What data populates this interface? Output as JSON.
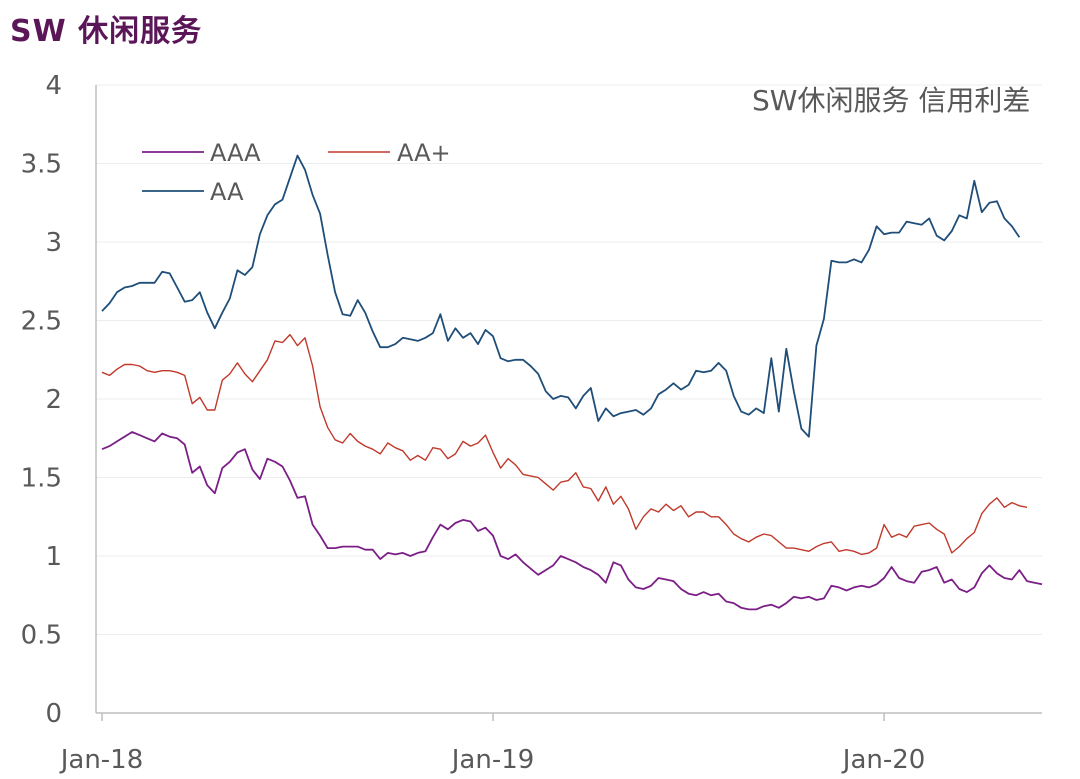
{
  "header": {
    "title": "SW 休闲服务"
  },
  "chart_data": {
    "type": "line",
    "title": "SW休闲服务 信用利差",
    "xlabel": "",
    "ylabel": "",
    "ylim": [
      0,
      4
    ],
    "yticks": [
      "0",
      "0.5",
      "1",
      "1.5",
      "2",
      "2.5",
      "3",
      "3.5",
      "4"
    ],
    "xticks": [
      "Jan-18",
      "Jan-19",
      "Jan-20"
    ],
    "grid": true,
    "legend_position": "top-left",
    "series": [
      {
        "name": "AAA",
        "color": "#7b1f87",
        "values": [
          1.68,
          1.7,
          1.73,
          1.76,
          1.79,
          1.77,
          1.75,
          1.73,
          1.78,
          1.76,
          1.75,
          1.71,
          1.53,
          1.57,
          1.45,
          1.4,
          1.56,
          1.6,
          1.66,
          1.68,
          1.55,
          1.49,
          1.62,
          1.6,
          1.57,
          1.48,
          1.37,
          1.38,
          1.2,
          1.13,
          1.05,
          1.05,
          1.06,
          1.06,
          1.06,
          1.04,
          1.04,
          0.98,
          1.02,
          1.01,
          1.02,
          1.0,
          1.02,
          1.03,
          1.12,
          1.2,
          1.17,
          1.21,
          1.23,
          1.22,
          1.16,
          1.18,
          1.13,
          1.0,
          0.98,
          1.01,
          0.96,
          0.92,
          0.88,
          0.91,
          0.94,
          1.0,
          0.98,
          0.96,
          0.93,
          0.91,
          0.88,
          0.83,
          0.96,
          0.94,
          0.85,
          0.8,
          0.79,
          0.81,
          0.86,
          0.85,
          0.84,
          0.79,
          0.76,
          0.75,
          0.77,
          0.75,
          0.76,
          0.71,
          0.7,
          0.67,
          0.66,
          0.66,
          0.68,
          0.69,
          0.67,
          0.7,
          0.74,
          0.73,
          0.74,
          0.72,
          0.73,
          0.81,
          0.8,
          0.78,
          0.8,
          0.81,
          0.8,
          0.82,
          0.86,
          0.93,
          0.86,
          0.84,
          0.83,
          0.9,
          0.91,
          0.93,
          0.83,
          0.85,
          0.79,
          0.77,
          0.8,
          0.89,
          0.94,
          0.89,
          0.86,
          0.85,
          0.91,
          0.84,
          0.83,
          0.82
        ]
      },
      {
        "name": "AA+",
        "color": "#c0392b",
        "values": [
          2.17,
          2.15,
          2.19,
          2.22,
          2.22,
          2.21,
          2.18,
          2.17,
          2.18,
          2.18,
          2.17,
          2.15,
          1.97,
          2.01,
          1.93,
          1.93,
          2.12,
          2.16,
          2.23,
          2.16,
          2.11,
          2.18,
          2.25,
          2.37,
          2.36,
          2.41,
          2.34,
          2.39,
          2.21,
          1.95,
          1.82,
          1.74,
          1.72,
          1.78,
          1.73,
          1.7,
          1.68,
          1.65,
          1.72,
          1.69,
          1.67,
          1.61,
          1.64,
          1.61,
          1.69,
          1.68,
          1.62,
          1.65,
          1.73,
          1.7,
          1.72,
          1.77,
          1.66,
          1.56,
          1.62,
          1.58,
          1.52,
          1.51,
          1.5,
          1.46,
          1.42,
          1.47,
          1.48,
          1.53,
          1.44,
          1.43,
          1.35,
          1.44,
          1.33,
          1.38,
          1.3,
          1.17,
          1.25,
          1.3,
          1.28,
          1.33,
          1.29,
          1.32,
          1.25,
          1.28,
          1.28,
          1.25,
          1.25,
          1.2,
          1.14,
          1.11,
          1.09,
          1.12,
          1.14,
          1.13,
          1.09,
          1.05,
          1.05,
          1.04,
          1.03,
          1.06,
          1.08,
          1.09,
          1.03,
          1.04,
          1.03,
          1.01,
          1.02,
          1.05,
          1.2,
          1.12,
          1.14,
          1.12,
          1.19,
          1.2,
          1.21,
          1.17,
          1.14,
          1.02,
          1.06,
          1.11,
          1.15,
          1.27,
          1.33,
          1.37,
          1.31,
          1.34,
          1.32,
          1.31
        ]
      },
      {
        "name": "AA",
        "color": "#1f4e79",
        "values": [
          2.56,
          2.61,
          2.68,
          2.71,
          2.72,
          2.74,
          2.74,
          2.74,
          2.81,
          2.8,
          2.71,
          2.62,
          2.63,
          2.68,
          2.55,
          2.45,
          2.55,
          2.64,
          2.82,
          2.79,
          2.84,
          3.05,
          3.17,
          3.24,
          3.27,
          3.41,
          3.55,
          3.46,
          3.3,
          3.18,
          2.92,
          2.68,
          2.54,
          2.53,
          2.63,
          2.55,
          2.43,
          2.33,
          2.33,
          2.35,
          2.39,
          2.38,
          2.37,
          2.39,
          2.42,
          2.54,
          2.37,
          2.45,
          2.39,
          2.42,
          2.35,
          2.44,
          2.4,
          2.26,
          2.24,
          2.25,
          2.25,
          2.21,
          2.16,
          2.05,
          2.0,
          2.02,
          2.01,
          1.94,
          2.02,
          2.07,
          1.86,
          1.94,
          1.89,
          1.91,
          1.92,
          1.93,
          1.9,
          1.94,
          2.03,
          2.06,
          2.1,
          2.06,
          2.09,
          2.18,
          2.17,
          2.18,
          2.23,
          2.18,
          2.02,
          1.92,
          1.9,
          1.94,
          1.91,
          2.26,
          1.92,
          2.32,
          2.05,
          1.81,
          1.76,
          2.34,
          2.51,
          2.88,
          2.87,
          2.87,
          2.89,
          2.87,
          2.95,
          3.1,
          3.05,
          3.06,
          3.06,
          3.13,
          3.12,
          3.11,
          3.15,
          3.04,
          3.01,
          3.07,
          3.17,
          3.15,
          3.39,
          3.19,
          3.25,
          3.26,
          3.15,
          3.1,
          3.03
        ]
      }
    ]
  }
}
